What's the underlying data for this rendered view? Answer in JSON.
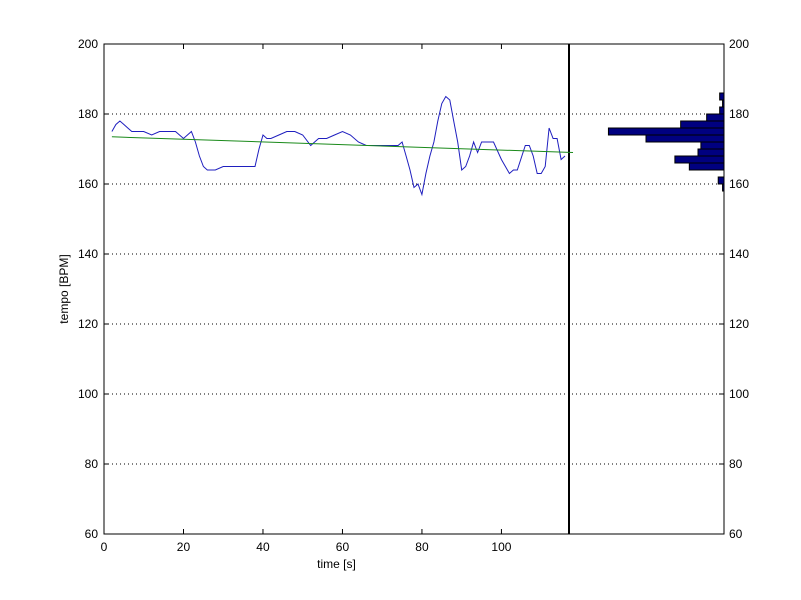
{
  "chart_data": {
    "type": "line",
    "xlabel": "time [s]",
    "ylabel": "tempo [BPM]",
    "xlim": [
      0,
      117
    ],
    "ylim": [
      60,
      200
    ],
    "xticks": [
      0,
      20,
      40,
      60,
      80,
      100
    ],
    "yticks": [
      60,
      80,
      100,
      120,
      140,
      160,
      180,
      200
    ],
    "grid": "horizontal dotted",
    "colors": {
      "tempo": "#1f1fbf",
      "trend": "#1a8a1a",
      "histogram": "#000080",
      "axes": "#000000"
    },
    "series": [
      {
        "x": [
          2,
          3,
          4,
          5,
          6,
          7,
          8,
          10,
          12,
          14,
          16,
          18,
          20,
          22,
          23,
          24,
          25,
          26,
          27,
          28,
          30,
          32,
          34,
          36,
          38,
          39,
          40,
          41,
          42,
          44,
          46,
          48,
          50,
          52,
          54,
          56,
          58,
          60,
          62,
          64,
          66,
          68,
          70,
          72,
          74,
          75,
          76,
          77,
          78,
          79,
          80,
          81,
          82,
          83,
          84,
          85,
          86,
          87,
          88,
          89,
          90,
          91,
          92,
          93,
          94,
          95,
          96,
          98,
          100,
          102,
          103,
          104,
          106,
          107,
          108,
          109,
          110,
          111,
          112,
          113,
          114,
          115,
          116
        ],
        "values": [
          175,
          177,
          178,
          177,
          176,
          175,
          175,
          175,
          174,
          175,
          175,
          175,
          173,
          175,
          172,
          168,
          165,
          164,
          164,
          164,
          165,
          165,
          165,
          165,
          165,
          170,
          174,
          173,
          173,
          174,
          175,
          175,
          174,
          171,
          173,
          173,
          174,
          175,
          174,
          172,
          171,
          171,
          171,
          171,
          171,
          172,
          168,
          164,
          159,
          160,
          157,
          163,
          168,
          172,
          178,
          183,
          185,
          184,
          178,
          172,
          164,
          165,
          168,
          172,
          169,
          172,
          172,
          172,
          167,
          163,
          164,
          164,
          171,
          171,
          168,
          163,
          163,
          165,
          176,
          173,
          173,
          167,
          168
        ]
      },
      {
        "x": [
          2,
          118
        ],
        "values": [
          173.5,
          169
        ]
      }
    ],
    "histogram": {
      "bins": [
        158,
        160,
        162,
        164,
        166,
        168,
        170,
        172,
        174,
        176,
        178,
        180,
        182,
        184
      ],
      "lengths": [
        0.5,
        2.0,
        0,
        12.0,
        17.0,
        9.0,
        8.0,
        27.0,
        40.0,
        15.0,
        6.0,
        1.5,
        0.5,
        1.5
      ]
    }
  }
}
